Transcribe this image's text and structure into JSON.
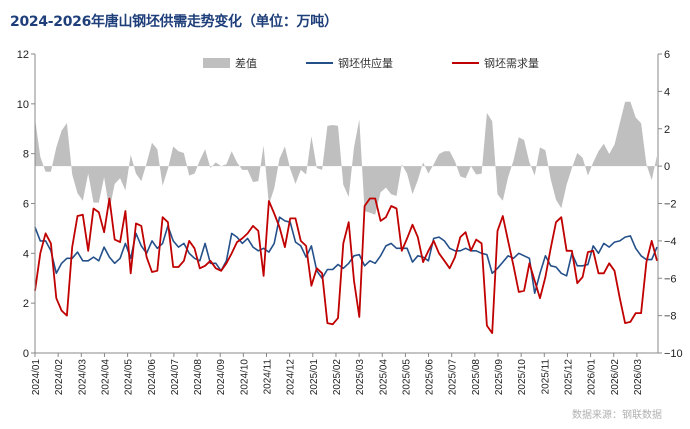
{
  "chart_data": {
    "type": "line",
    "title": "2024-2026年唐山钢坯供需走势变化（单位：万吨）",
    "source": "数据来源：钢联数据",
    "x_tick_labels": [
      "2024/01",
      "2024/02",
      "2024/03",
      "2024/04",
      "2024/05",
      "2024/06",
      "2024/07",
      "2024/08",
      "2024/09",
      "2024/10",
      "2024/11",
      "2024/12",
      "2025/01",
      "2025/02",
      "2025/03",
      "2025/04",
      "2025/05",
      "2025/06",
      "2025/07",
      "2025/08",
      "2025/09",
      "2025/10",
      "2025/11",
      "2025/12",
      "2026/01",
      "2026/02",
      "2026/03"
    ],
    "y_left": {
      "range": [
        0,
        12
      ],
      "ticks": [
        0,
        2,
        4,
        6,
        8,
        10,
        12
      ]
    },
    "y_right": {
      "range": [
        -10,
        6
      ],
      "ticks": [
        -10,
        -8,
        -6,
        -4,
        -2,
        0,
        2,
        4,
        6
      ]
    },
    "grid": false,
    "legend_position": "top",
    "series": [
      {
        "name": "差值",
        "type": "area",
        "axis": "right",
        "color": "#bfbfbf",
        "values": [
          2.55,
          0.5,
          -0.3,
          -0.3,
          1.0,
          1.9,
          2.3,
          -0.45,
          -1.45,
          -1.85,
          -0.4,
          -1.95,
          -1.95,
          -0.6,
          -2.35,
          -0.95,
          -0.65,
          -1.3,
          0.6,
          -0.4,
          -0.8,
          0.15,
          1.25,
          0.9,
          -1.05,
          -0.15,
          1.05,
          0.8,
          0.7,
          -0.5,
          -0.4,
          0.3,
          0.9,
          -0.1,
          0.2,
          0,
          0.1,
          0.8,
          0.2,
          -0.2,
          -0.2,
          -0.85,
          -0.8,
          1.1,
          -2.05,
          -1.2,
          0.4,
          1.05,
          -0.15,
          -0.95,
          -0.2,
          -0.45,
          1.6,
          -0.1,
          -0.2,
          2.15,
          2.2,
          2.15,
          -1.0,
          -1.65,
          1.0,
          2.5,
          -2.4,
          -2.5,
          -2.6,
          -1.4,
          -1.15,
          -1.5,
          -1.6,
          0.1,
          -0.4,
          -1.5,
          -0.75,
          0.2,
          -0.4,
          0.1,
          0.65,
          0.8,
          0.8,
          0.25,
          -0.55,
          -0.65,
          0,
          -0.45,
          -0.4,
          2.85,
          2.4,
          -1.5,
          -1.85,
          -0.6,
          0.3,
          1.55,
          1.4,
          0.2,
          -0.5,
          1.0,
          0.85,
          -0.7,
          -1.8,
          -2.25,
          -1.0,
          -0.1,
          0.7,
          0.45,
          -0.5,
          0.2,
          0.8,
          1.2,
          0.65,
          1.15,
          2.3,
          3.45,
          3.45,
          2.6,
          2.3,
          0.1,
          -0.75,
          0.55
        ]
      },
      {
        "name": "钢坯供应量",
        "type": "line",
        "axis": "left",
        "color": "#24508a",
        "values": [
          5.05,
          4.5,
          4.5,
          4.1,
          3.2,
          3.6,
          3.8,
          3.8,
          4.05,
          3.7,
          3.7,
          3.85,
          3.7,
          4.25,
          3.85,
          3.6,
          3.8,
          4.4,
          3.8,
          4.8,
          4.3,
          4.0,
          4.5,
          4.2,
          4.4,
          5.1,
          4.5,
          4.25,
          4.4,
          4.0,
          3.8,
          3.7,
          4.4,
          3.6,
          3.6,
          3.3,
          3.7,
          4.8,
          4.65,
          4.4,
          4.6,
          4.25,
          4.1,
          4.2,
          4.05,
          4.4,
          5.45,
          5.3,
          5.25,
          4.45,
          4.3,
          3.85,
          4.3,
          3.3,
          3.0,
          3.35,
          3.35,
          3.55,
          3.4,
          3.6,
          3.9,
          3.95,
          3.5,
          3.7,
          3.6,
          3.9,
          4.3,
          4.4,
          4.2,
          4.2,
          4.2,
          3.65,
          3.9,
          3.85,
          3.7,
          4.6,
          4.65,
          4.5,
          4.2,
          4.1,
          4.1,
          4.2,
          4.1,
          4.1,
          4.0,
          3.95,
          3.2,
          3.4,
          3.65,
          3.9,
          3.8,
          4.0,
          3.9,
          3.8,
          2.4,
          3.2,
          3.9,
          3.5,
          3.45,
          3.2,
          3.1,
          4.0,
          3.5,
          3.5,
          3.55,
          4.3,
          4.0,
          4.4,
          4.25,
          4.45,
          4.5,
          4.65,
          4.7,
          4.2,
          3.9,
          3.75,
          3.75,
          4.25
        ]
      },
      {
        "name": "钢坯需求量",
        "type": "line",
        "axis": "left",
        "color": "#c00000",
        "values": [
          2.5,
          4.0,
          4.8,
          4.4,
          2.2,
          1.7,
          1.5,
          4.25,
          5.5,
          5.55,
          4.1,
          5.8,
          5.65,
          4.85,
          6.2,
          4.55,
          4.45,
          5.7,
          3.2,
          5.2,
          5.1,
          3.85,
          3.25,
          3.3,
          5.45,
          5.25,
          3.45,
          3.45,
          3.7,
          4.5,
          4.2,
          3.4,
          3.5,
          3.7,
          3.4,
          3.3,
          3.6,
          4.0,
          4.45,
          4.6,
          4.8,
          5.1,
          4.9,
          3.1,
          6.1,
          5.6,
          5.05,
          4.25,
          5.4,
          5.4,
          4.5,
          4.3,
          2.7,
          3.4,
          3.2,
          1.2,
          1.15,
          1.4,
          4.4,
          5.25,
          2.9,
          1.45,
          5.9,
          6.2,
          6.2,
          5.3,
          5.45,
          5.9,
          5.8,
          4.1,
          4.6,
          5.15,
          4.65,
          3.65,
          4.1,
          4.5,
          4.0,
          3.7,
          3.4,
          3.85,
          4.65,
          4.85,
          4.1,
          4.55,
          4.4,
          1.1,
          0.8,
          4.9,
          5.5,
          4.5,
          3.5,
          2.45,
          2.5,
          3.6,
          2.9,
          2.2,
          3.05,
          4.2,
          5.25,
          5.45,
          4.1,
          4.1,
          2.8,
          3.05,
          4.05,
          4.1,
          3.2,
          3.2,
          3.6,
          3.3,
          2.2,
          1.2,
          1.25,
          1.6,
          1.6,
          3.65,
          4.5,
          3.7
        ]
      }
    ]
  }
}
